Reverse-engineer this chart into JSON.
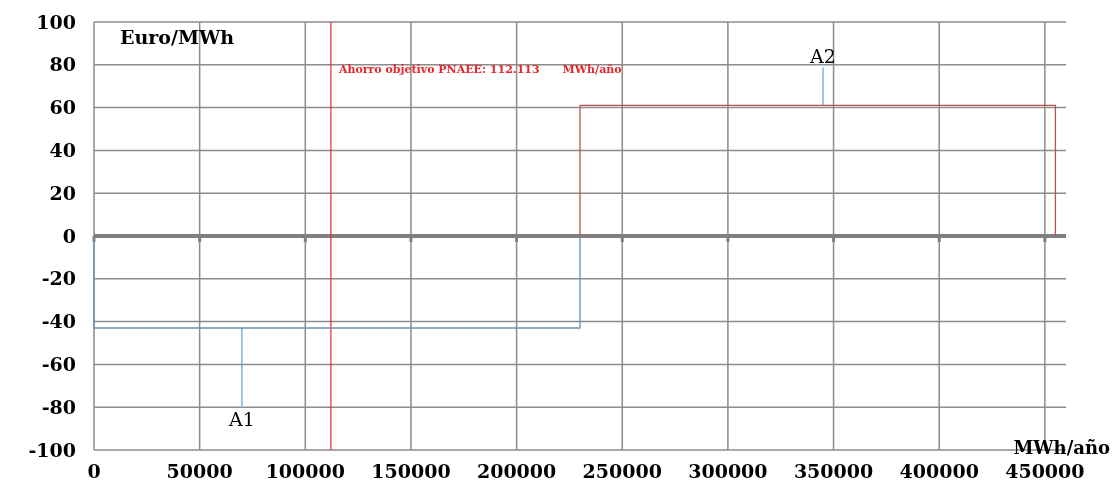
{
  "chart_data": {
    "type": "line",
    "ylabel": "Euro/MWh",
    "xlabel": "MWh/año",
    "series": [
      {
        "color": "#6f8fb0",
        "x": [
          0,
          0,
          230000,
          230000
        ],
        "values": [
          0,
          -43,
          -43,
          0
        ]
      },
      {
        "color": "#b85450",
        "x": [
          230000,
          230000,
          455000,
          455000
        ],
        "values": [
          0,
          61,
          61,
          0
        ]
      }
    ],
    "xlim": [
      0,
      460000
    ],
    "xticks": [
      0,
      50000,
      100000,
      150000,
      200000,
      250000,
      300000,
      350000,
      400000,
      450000
    ],
    "ylim": [
      -100,
      100
    ],
    "yticks": [
      -100,
      -80,
      -60,
      -40,
      -20,
      0,
      20,
      40,
      60,
      80,
      100
    ],
    "grid": true,
    "marker": "none",
    "line_style": "solid",
    "ref_lines": [
      {
        "axis": "x",
        "value": 112113,
        "label": "Ahorro objetivo PNAEE: 112.113      MWh/año",
        "color": "#e8262b"
      }
    ],
    "annotations": [
      {
        "text": "A1",
        "x": 70000,
        "y": -43
      },
      {
        "text": "A2",
        "x": 345000,
        "y": 61
      }
    ]
  }
}
